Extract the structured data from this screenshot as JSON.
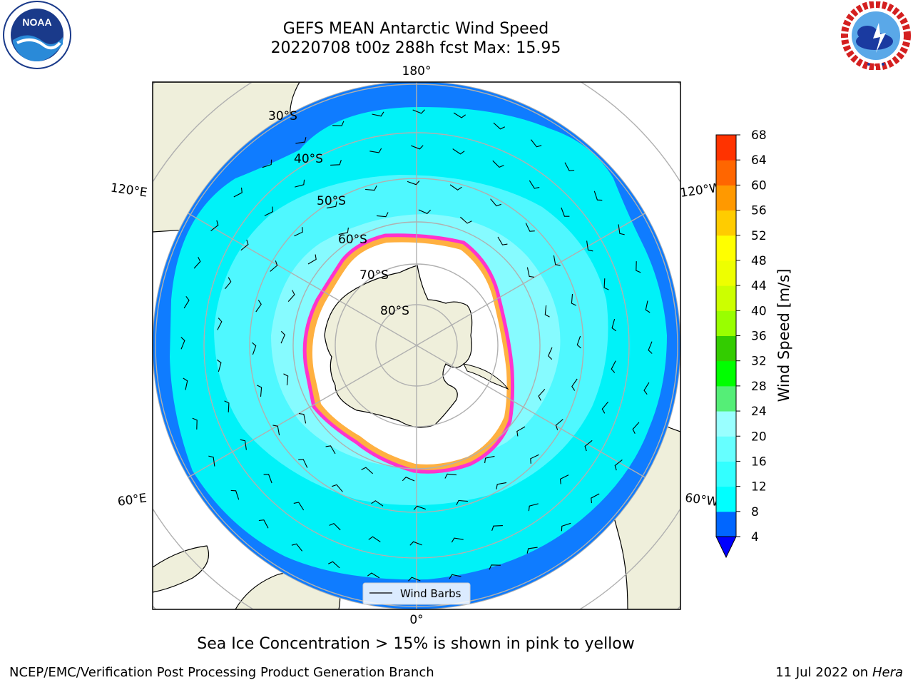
{
  "header": {
    "title_line1": "GEFS MEAN Antarctic Wind Speed",
    "title_line2": "20220708 t00z 288h fcst   Max: 15.95"
  },
  "logos": {
    "left": {
      "name": "noaa-logo",
      "text": "NOAA",
      "ring_text": "NATIONAL OCEANIC AND ATMOSPHERIC ADMINISTRATION · U.S. DEPARTMENT OF COMMERCE"
    },
    "right": {
      "name": "nws-logo",
      "ring_text": "NATIONAL WEATHER SERVICE"
    }
  },
  "map": {
    "projection": "south-polar-stereographic",
    "longitude_labels": {
      "top": "180°",
      "bottom": "0°",
      "left_upper": "120°E",
      "left_lower": "60°E",
      "right_upper": "120°W",
      "right_lower": "60°W"
    },
    "latitude_labels": [
      "30°S",
      "40°S",
      "50°S",
      "60°S",
      "70°S",
      "80°S"
    ],
    "legend_label": "Wind Barbs"
  },
  "colorbar": {
    "label": "Wind Speed [m/s]",
    "ticks": [
      "4",
      "8",
      "12",
      "16",
      "20",
      "24",
      "28",
      "32",
      "36",
      "40",
      "44",
      "48",
      "52",
      "56",
      "60",
      "64",
      "68"
    ],
    "colors": [
      "#0066ff",
      "#00ffff",
      "#33ffff",
      "#66ffff",
      "#99ffff",
      "#55ee77",
      "#00ff00",
      "#33cc00",
      "#99ff00",
      "#ccff00",
      "#eeff00",
      "#ffff00",
      "#ffcc00",
      "#ff9900",
      "#ff6600",
      "#ff3300",
      "#ff0000"
    ],
    "under_color": "#0000ff"
  },
  "footer": {
    "note": "Sea Ice Concentration > 15% is shown in pink to yellow",
    "left": "NCEP/EMC/Verification Post Processing Product Generation Branch",
    "right_prefix": "11 Jul 2022 on ",
    "right_host": "Hera"
  }
}
